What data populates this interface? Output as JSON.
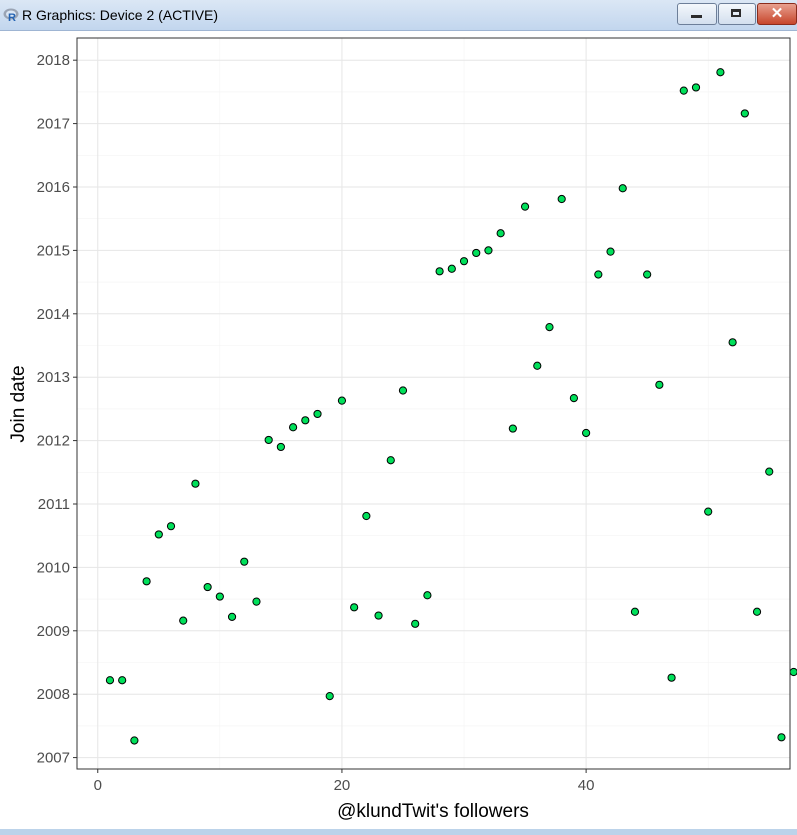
{
  "window": {
    "title": "R Graphics: Device 2 (ACTIVE)",
    "buttons": {
      "minimize": "minimize-icon",
      "maximize": "maximize-icon",
      "close": "close-icon"
    },
    "close_glyph": "✕"
  },
  "chart_data": {
    "type": "scatter",
    "title": "",
    "xlabel": "@klundTwit's followers",
    "ylabel": "Join date",
    "xlim": [
      -1.7,
      56.7
    ],
    "ylim": [
      2006.82,
      2018.35
    ],
    "x_ticks": [
      0,
      20,
      40
    ],
    "y_ticks": [
      2007,
      2008,
      2009,
      2010,
      2011,
      2012,
      2013,
      2014,
      2015,
      2016,
      2017,
      2018
    ],
    "grid": true,
    "legend": "none",
    "point_fill": "#00e05a",
    "point_stroke": "#000000",
    "points": [
      {
        "x": 1,
        "y": 2008.22
      },
      {
        "x": 2,
        "y": 2008.22
      },
      {
        "x": 3,
        "y": 2007.27
      },
      {
        "x": 4,
        "y": 2009.78
      },
      {
        "x": 5,
        "y": 2010.52
      },
      {
        "x": 6,
        "y": 2010.65
      },
      {
        "x": 7,
        "y": 2009.16
      },
      {
        "x": 8,
        "y": 2011.32
      },
      {
        "x": 9,
        "y": 2009.69
      },
      {
        "x": 10,
        "y": 2009.54
      },
      {
        "x": 11,
        "y": 2009.22
      },
      {
        "x": 12,
        "y": 2010.09
      },
      {
        "x": 13,
        "y": 2009.46
      },
      {
        "x": 14,
        "y": 2012.01
      },
      {
        "x": 15,
        "y": 2011.9
      },
      {
        "x": 16,
        "y": 2012.21
      },
      {
        "x": 17,
        "y": 2012.32
      },
      {
        "x": 18,
        "y": 2012.42
      },
      {
        "x": 19,
        "y": 2007.97
      },
      {
        "x": 20,
        "y": 2012.63
      },
      {
        "x": 21,
        "y": 2009.37
      },
      {
        "x": 22,
        "y": 2010.81
      },
      {
        "x": 23,
        "y": 2009.24
      },
      {
        "x": 24,
        "y": 2011.69
      },
      {
        "x": 25,
        "y": 2012.79
      },
      {
        "x": 26,
        "y": 2009.11
      },
      {
        "x": 27,
        "y": 2009.56
      },
      {
        "x": 28,
        "y": 2014.67
      },
      {
        "x": 29,
        "y": 2014.71
      },
      {
        "x": 30,
        "y": 2014.83
      },
      {
        "x": 31,
        "y": 2014.96
      },
      {
        "x": 32,
        "y": 2015.0
      },
      {
        "x": 33,
        "y": 2015.27
      },
      {
        "x": 34,
        "y": 2012.19
      },
      {
        "x": 35,
        "y": 2015.69
      },
      {
        "x": 36,
        "y": 2013.18
      },
      {
        "x": 37,
        "y": 2013.79
      },
      {
        "x": 38,
        "y": 2015.81
      },
      {
        "x": 39,
        "y": 2012.67
      },
      {
        "x": 40,
        "y": 2012.12
      },
      {
        "x": 41,
        "y": 2014.62
      },
      {
        "x": 42,
        "y": 2014.98
      },
      {
        "x": 43,
        "y": 2015.98
      },
      {
        "x": 44,
        "y": 2009.3
      },
      {
        "x": 45,
        "y": 2014.62
      },
      {
        "x": 46,
        "y": 2012.88
      },
      {
        "x": 47,
        "y": 2008.26
      },
      {
        "x": 48,
        "y": 2017.52
      },
      {
        "x": 49,
        "y": 2017.57
      },
      {
        "x": 50,
        "y": 2010.88
      },
      {
        "x": 51,
        "y": 2017.81
      },
      {
        "x": 52,
        "y": 2013.55
      },
      {
        "x": 53,
        "y": 2017.16
      },
      {
        "x": 54,
        "y": 2009.3
      },
      {
        "x": 55,
        "y": 2011.51
      },
      {
        "x": 56,
        "y": 2007.32
      },
      {
        "x": 57,
        "y": 2008.35
      }
    ]
  }
}
